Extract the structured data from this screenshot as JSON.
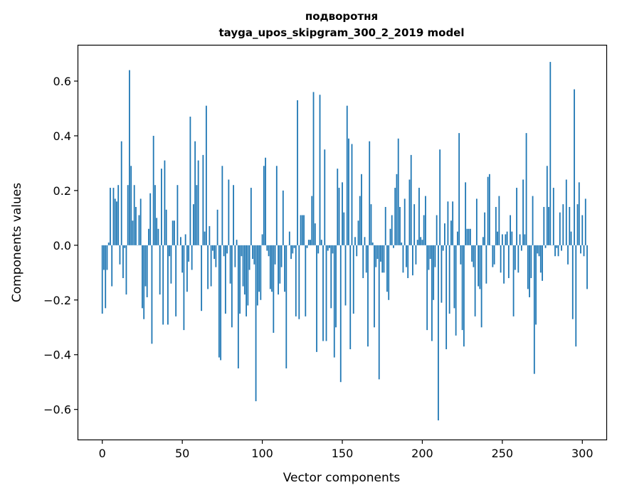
{
  "chart_data": {
    "type": "bar",
    "title": "подворотня",
    "subtitle": "tayga_upos_skipgram_300_2_2019 model",
    "xlabel": "Vector components",
    "ylabel": "Components values",
    "xlim": [
      -15,
      315
    ],
    "ylim": [
      -0.71,
      0.73
    ],
    "xticks": [
      0,
      50,
      100,
      150,
      200,
      250,
      300
    ],
    "yticks": [
      -0.6,
      -0.4,
      -0.2,
      0.0,
      0.2,
      0.4,
      0.6
    ],
    "ytick_labels": [
      "−0.6",
      "−0.4",
      "−0.2",
      "0.0",
      "0.2",
      "0.4",
      "0.6"
    ],
    "bar_color": "#1f77b4",
    "grid": false,
    "legend": "none",
    "values": [
      -0.25,
      -0.09,
      -0.23,
      -0.09,
      0.01,
      0.21,
      -0.15,
      0.21,
      0.17,
      0.16,
      0.22,
      -0.07,
      0.38,
      -0.12,
      -0.01,
      -0.18,
      0.22,
      0.64,
      0.29,
      0.09,
      0.22,
      0.14,
      0.0,
      0.11,
      0.17,
      -0.23,
      -0.27,
      -0.15,
      -0.19,
      0.06,
      0.19,
      -0.36,
      0.4,
      0.22,
      0.1,
      0.06,
      -0.18,
      0.28,
      -0.29,
      0.31,
      0.13,
      -0.29,
      -0.04,
      -0.14,
      0.09,
      0.09,
      -0.26,
      0.22,
      0.0,
      0.03,
      -0.1,
      -0.31,
      0.04,
      -0.17,
      -0.06,
      0.47,
      -0.09,
      0.15,
      0.38,
      0.22,
      0.31,
      0.0,
      -0.24,
      0.33,
      0.05,
      0.51,
      -0.16,
      0.07,
      -0.15,
      -0.02,
      -0.05,
      -0.08,
      0.13,
      -0.41,
      -0.42,
      0.29,
      -0.04,
      -0.25,
      -0.03,
      0.24,
      -0.14,
      -0.3,
      0.22,
      -0.08,
      0.02,
      -0.45,
      -0.25,
      -0.04,
      -0.15,
      -0.18,
      -0.26,
      -0.22,
      -0.09,
      0.21,
      -0.05,
      -0.07,
      -0.57,
      -0.22,
      -0.17,
      -0.2,
      0.04,
      0.29,
      0.32,
      -0.02,
      -0.04,
      -0.16,
      -0.17,
      -0.32,
      -0.07,
      0.29,
      -0.18,
      -0.14,
      -0.08,
      0.2,
      -0.17,
      -0.45,
      0.0,
      0.05,
      -0.05,
      -0.03,
      -0.01,
      -0.26,
      0.53,
      -0.27,
      0.11,
      0.11,
      0.11,
      -0.26,
      -0.01,
      0.02,
      0.02,
      0.18,
      0.56,
      0.08,
      -0.39,
      -0.03,
      0.55,
      0.02,
      -0.35,
      0.35,
      -0.35,
      -0.02,
      -0.01,
      -0.23,
      -0.03,
      -0.41,
      -0.3,
      0.28,
      0.21,
      -0.5,
      0.23,
      0.12,
      -0.22,
      0.51,
      0.39,
      -0.38,
      0.37,
      -0.25,
      0.03,
      -0.04,
      0.09,
      0.18,
      0.26,
      -0.12,
      0.03,
      -0.1,
      -0.37,
      0.38,
      0.15,
      0.01,
      -0.3,
      -0.08,
      -0.05,
      -0.49,
      -0.06,
      -0.1,
      -0.1,
      0.14,
      -0.17,
      -0.2,
      0.06,
      0.11,
      -0.01,
      0.21,
      0.26,
      0.39,
      0.14,
      0.01,
      -0.1,
      0.17,
      -0.08,
      -0.12,
      0.24,
      0.33,
      -0.11,
      0.15,
      -0.07,
      0.02,
      0.21,
      0.03,
      0.02,
      0.11,
      0.18,
      -0.31,
      -0.09,
      -0.05,
      -0.35,
      -0.2,
      -0.08,
      0.11,
      -0.64,
      0.35,
      -0.21,
      -0.02,
      0.08,
      -0.38,
      0.16,
      -0.25,
      0.09,
      0.16,
      -0.23,
      -0.33,
      0.05,
      0.41,
      -0.07,
      -0.31,
      -0.37,
      0.23,
      0.06,
      0.06,
      0.06,
      -0.06,
      -0.08,
      -0.26,
      0.17,
      -0.15,
      -0.16,
      -0.3,
      0.03,
      0.12,
      -0.14,
      0.25,
      0.26,
      0.0,
      -0.08,
      -0.07,
      0.14,
      0.05,
      0.18,
      -0.1,
      0.04,
      -0.14,
      0.04,
      0.05,
      -0.12,
      0.11,
      0.05,
      -0.26,
      -0.09,
      0.21,
      -0.1,
      0.04,
      -0.02,
      0.24,
      0.04,
      0.41,
      -0.16,
      -0.19,
      -0.12,
      0.18,
      -0.47,
      -0.29,
      -0.03,
      -0.04,
      -0.1,
      -0.13,
      0.14,
      -0.01,
      0.29,
      0.14,
      0.67,
      0.0,
      0.21,
      -0.04,
      -0.01,
      -0.04,
      0.12,
      -0.02,
      0.15,
      0.0,
      0.24,
      -0.07,
      0.14,
      0.05,
      -0.27,
      0.57,
      -0.37,
      0.15,
      0.23,
      -0.03,
      0.11,
      -0.04,
      0.17,
      -0.16
    ]
  }
}
